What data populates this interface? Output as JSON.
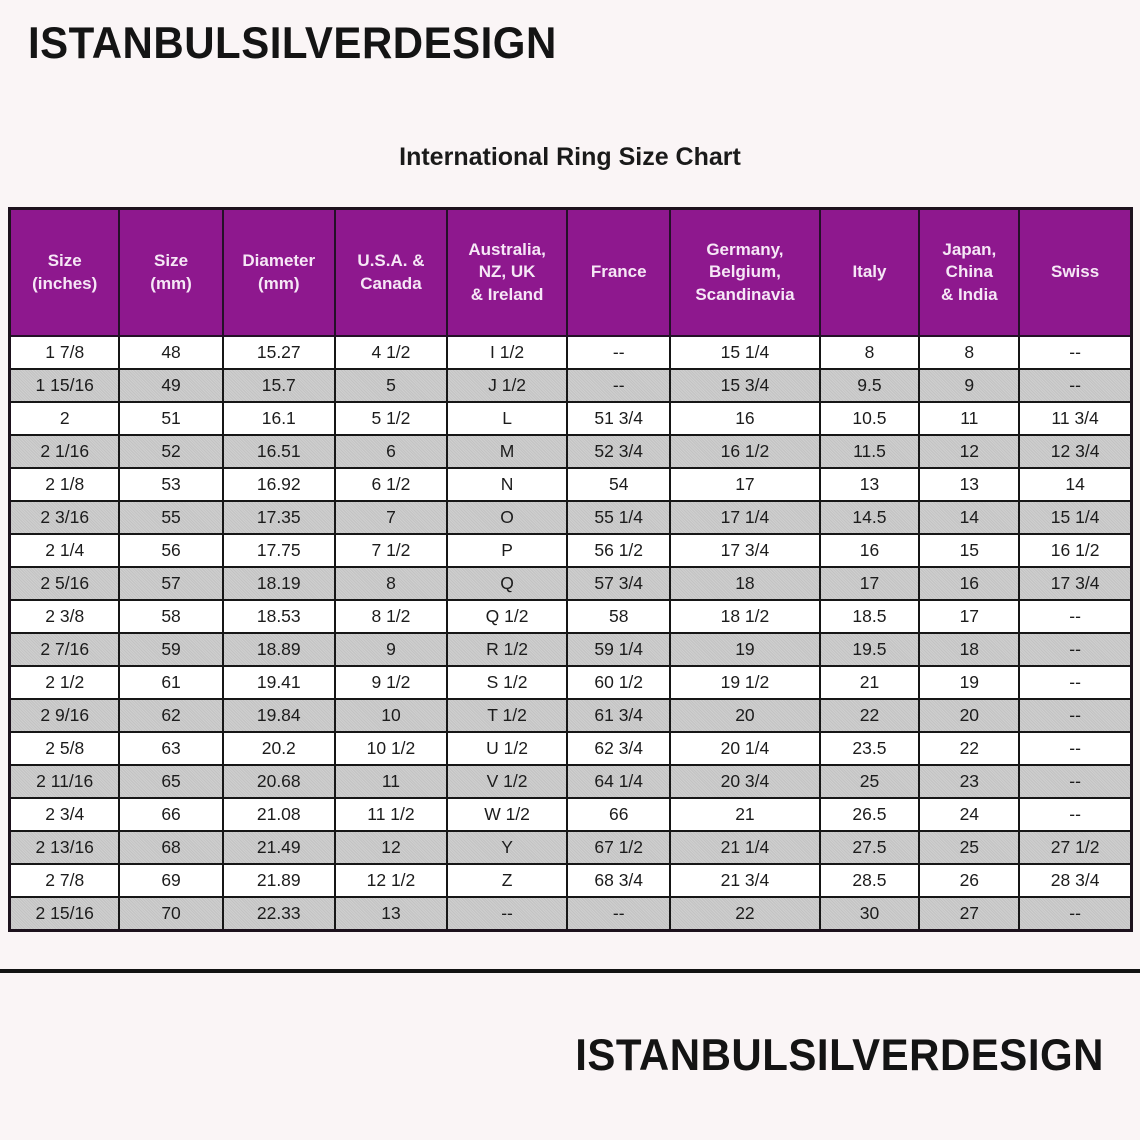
{
  "page": {
    "brand_top": "ISTANBULSILVERDESIGN",
    "brand_bottom": "ISTANBULSILVERDESIGN"
  },
  "colors": {
    "page_bg": "#faf5f6",
    "header_bg": "#8e188e",
    "header_text": "#f6e7f6",
    "row_bg": "#ffffff",
    "row_alt_bg": "#c9c9c9",
    "border": "#161616"
  },
  "chart_data": {
    "type": "table",
    "title": "International Ring Size Chart",
    "legend_position": "none",
    "columns": [
      "Size\n(inches)",
      "Size\n(mm)",
      "Diameter\n(mm)",
      "U.S.A. &\nCanada",
      "Australia,\nNZ, UK\n& Ireland",
      "France",
      "Germany,\nBelgium,\nScandinavia",
      "Italy",
      "Japan,\nChina\n& India",
      "Swiss"
    ],
    "rows": [
      [
        "1 7/8",
        "48",
        "15.27",
        "4 1/2",
        "I 1/2",
        "--",
        "15 1/4",
        "8",
        "8",
        "--"
      ],
      [
        "1 15/16",
        "49",
        "15.7",
        "5",
        "J 1/2",
        "--",
        "15 3/4",
        "9.5",
        "9",
        "--"
      ],
      [
        "2",
        "51",
        "16.1",
        "5 1/2",
        "L",
        "51 3/4",
        "16",
        "10.5",
        "11",
        "11 3/4"
      ],
      [
        "2 1/16",
        "52",
        "16.51",
        "6",
        "M",
        "52 3/4",
        "16 1/2",
        "11.5",
        "12",
        "12 3/4"
      ],
      [
        "2 1/8",
        "53",
        "16.92",
        "6 1/2",
        "N",
        "54",
        "17",
        "13",
        "13",
        "14"
      ],
      [
        "2 3/16",
        "55",
        "17.35",
        "7",
        "O",
        "55 1/4",
        "17 1/4",
        "14.5",
        "14",
        "15 1/4"
      ],
      [
        "2 1/4",
        "56",
        "17.75",
        "7 1/2",
        "P",
        "56 1/2",
        "17 3/4",
        "16",
        "15",
        "16 1/2"
      ],
      [
        "2 5/16",
        "57",
        "18.19",
        "8",
        "Q",
        "57 3/4",
        "18",
        "17",
        "16",
        "17 3/4"
      ],
      [
        "2 3/8",
        "58",
        "18.53",
        "8 1/2",
        "Q 1/2",
        "58",
        "18 1/2",
        "18.5",
        "17",
        "--"
      ],
      [
        "2 7/16",
        "59",
        "18.89",
        "9",
        "R 1/2",
        "59 1/4",
        "19",
        "19.5",
        "18",
        "--"
      ],
      [
        "2 1/2",
        "61",
        "19.41",
        "9 1/2",
        "S 1/2",
        "60 1/2",
        "19 1/2",
        "21",
        "19",
        "--"
      ],
      [
        "2 9/16",
        "62",
        "19.84",
        "10",
        "T 1/2",
        "61 3/4",
        "20",
        "22",
        "20",
        "--"
      ],
      [
        "2 5/8",
        "63",
        "20.2",
        "10 1/2",
        "U 1/2",
        "62 3/4",
        "20 1/4",
        "23.5",
        "22",
        "--"
      ],
      [
        "2 11/16",
        "65",
        "20.68",
        "11",
        "V 1/2",
        "64 1/4",
        "20 3/4",
        "25",
        "23",
        "--"
      ],
      [
        "2 3/4",
        "66",
        "21.08",
        "11 1/2",
        "W 1/2",
        "66",
        "21",
        "26.5",
        "24",
        "--"
      ],
      [
        "2 13/16",
        "68",
        "21.49",
        "12",
        "Y",
        "67 1/2",
        "21 1/4",
        "27.5",
        "25",
        "27 1/2"
      ],
      [
        "2 7/8",
        "69",
        "21.89",
        "12 1/2",
        "Z",
        "68 3/4",
        "21 3/4",
        "28.5",
        "26",
        "28 3/4"
      ],
      [
        "2 15/16",
        "70",
        "22.33",
        "13",
        "--",
        "--",
        "22",
        "30",
        "27",
        "--"
      ]
    ]
  }
}
